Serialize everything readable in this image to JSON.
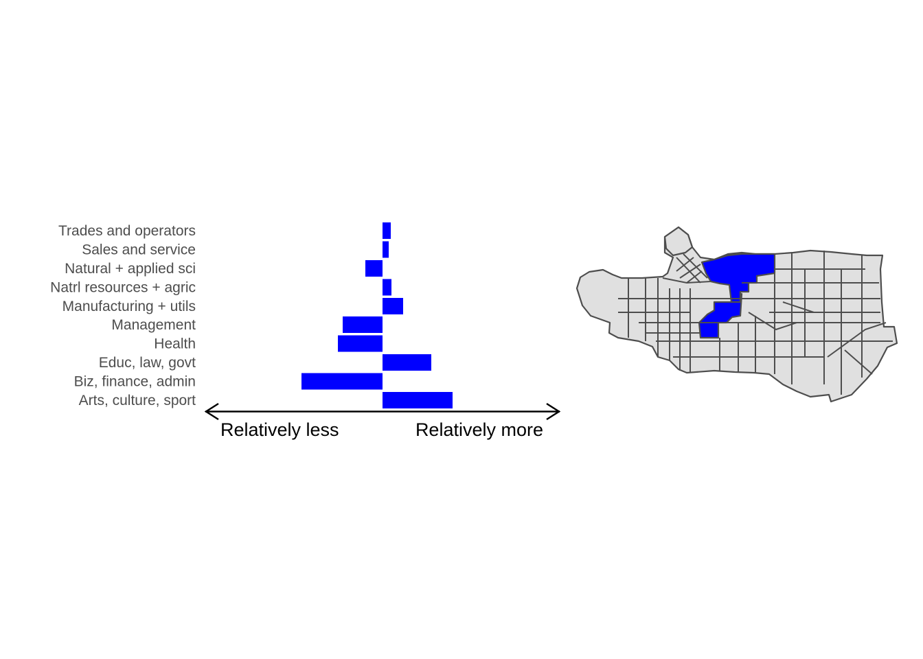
{
  "colors": {
    "bar": "#0000ff",
    "highlight_tract": "#0000ff",
    "base_tract": "#e0e0e0",
    "tract_border": "#4d4d4d",
    "label_text": "#4d4d4d",
    "axis_text": "#000000"
  },
  "chart_data": [
    {
      "type": "bar",
      "orientation": "horizontal",
      "categories": [
        "Trades and operators",
        "Sales and service",
        "Natural + applied sci",
        "Natrl resources + agric",
        "Manufacturing + utils",
        "Management",
        "Health",
        "Educ, law, govt",
        "Biz, finance, admin",
        "Arts, culture, sport"
      ],
      "values": [
        0.12,
        0.09,
        -0.25,
        0.13,
        0.3,
        -0.58,
        -0.65,
        0.71,
        -1.18,
        1.02
      ],
      "xlim": [
        -2.58,
        2.58
      ],
      "baseline": 0,
      "legend": "none",
      "grid": false,
      "direction_labels": {
        "left": "Relatively less",
        "right": "Relatively more"
      },
      "arrow": "double-headed, below bars"
    },
    {
      "type": "map",
      "region": "census tracts",
      "fill_base": "#e0e0e0",
      "fill_highlight": "#0000ff",
      "highlighted_areas": "downtown/north-central tracts and a central corridor"
    }
  ]
}
